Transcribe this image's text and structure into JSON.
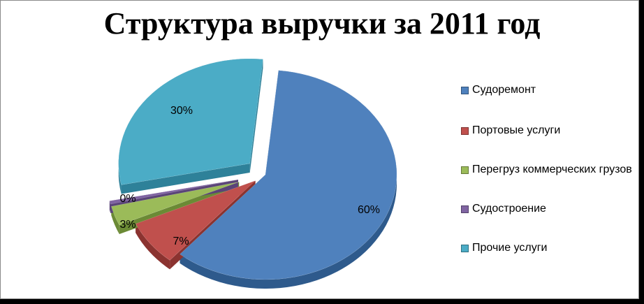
{
  "chart_data": {
    "type": "pie",
    "title": "Структура выручки за 2011 год",
    "legend_position": "right",
    "slices": [
      {
        "name": "Судоремонт",
        "value": 60,
        "label": "60%",
        "color": "#4F81BD",
        "side": "#2E5A8C"
      },
      {
        "name": "Портовые услуги",
        "value": 7,
        "label": "7%",
        "color": "#C0504D",
        "side": "#8B3330"
      },
      {
        "name": "Перегруз коммерческих грузов",
        "value": 3,
        "label": "3%",
        "color": "#9BBB59",
        "side": "#6B8A35"
      },
      {
        "name": "Судостроение",
        "value": 0.5,
        "label": "0%",
        "color": "#8064A2",
        "side": "#5A4478"
      },
      {
        "name": "Прочие услуги",
        "value": 30,
        "label": "30%",
        "color": "#4BACC6",
        "side": "#2E8199"
      }
    ]
  }
}
